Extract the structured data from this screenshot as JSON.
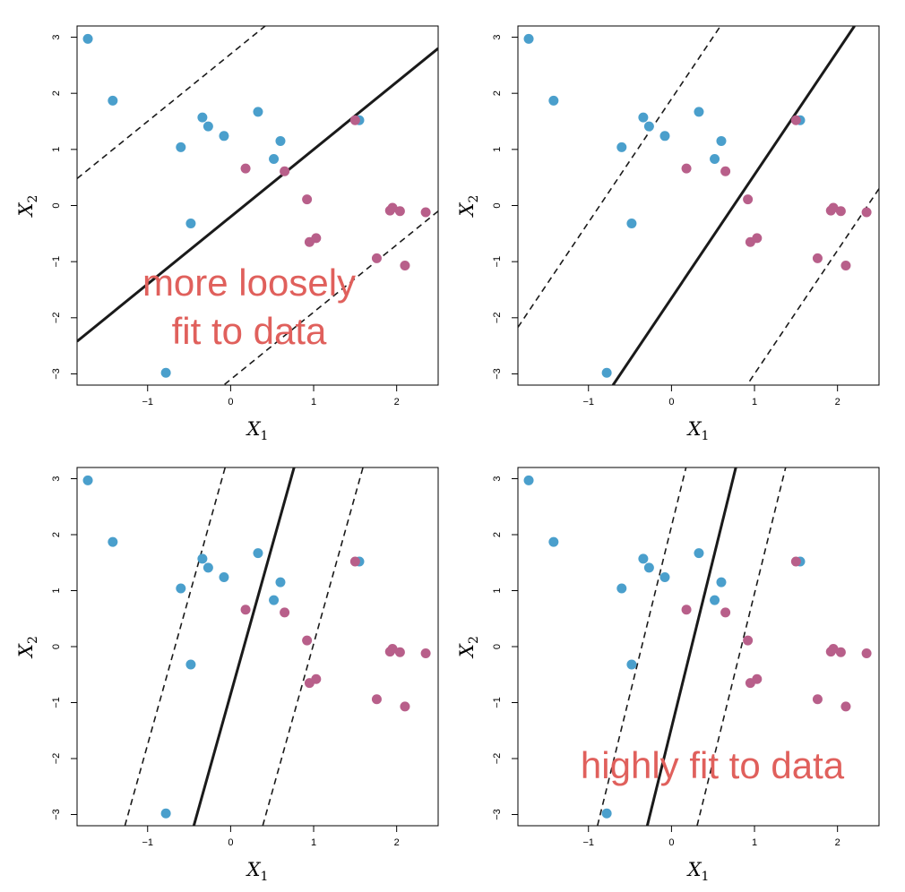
{
  "chart_data": [
    {
      "type": "scatter",
      "xlabel": "X",
      "xlabel_sub": "1",
      "ylabel": "X",
      "ylabel_sub": "2",
      "xlim": [
        -1.85,
        2.5
      ],
      "ylim": [
        -3.2,
        3.2
      ],
      "xticks": [
        -1,
        0,
        1,
        2
      ],
      "yticks": [
        -3,
        -2,
        -1,
        0,
        1,
        2,
        3
      ],
      "annotation": "more loosely\nfit to data",
      "decision_boundary": {
        "slope": 1.2,
        "intercept": -0.2
      },
      "margin_offset": 2.9
    },
    {
      "type": "scatter",
      "xlabel": "X",
      "xlabel_sub": "1",
      "ylabel": "X",
      "ylabel_sub": "2",
      "xlim": [
        -1.85,
        2.5
      ],
      "ylim": [
        -3.2,
        3.2
      ],
      "xticks": [
        -1,
        0,
        1,
        2
      ],
      "yticks": [
        -3,
        -2,
        -1,
        0,
        1,
        2,
        3
      ],
      "annotation": "",
      "decision_boundary": {
        "slope": 2.2,
        "intercept": -1.65
      },
      "margin_offset": 3.55
    },
    {
      "type": "scatter",
      "xlabel": "X",
      "xlabel_sub": "1",
      "ylabel": "X",
      "ylabel_sub": "2",
      "xlim": [
        -1.85,
        2.5
      ],
      "ylim": [
        -3.2,
        3.2
      ],
      "xticks": [
        -1,
        0,
        1,
        2
      ],
      "yticks": [
        -3,
        -2,
        -1,
        0,
        1,
        2,
        3
      ],
      "annotation": "",
      "decision_boundary": {
        "slope": 5.3,
        "intercept": -0.85
      },
      "margin_offset": 4.4
    },
    {
      "type": "scatter",
      "xlabel": "X",
      "xlabel_sub": "1",
      "ylabel": "X",
      "ylabel_sub": "2",
      "xlim": [
        -1.85,
        2.5
      ],
      "ylim": [
        -3.2,
        3.2
      ],
      "xticks": [
        -1,
        0,
        1,
        2
      ],
      "yticks": [
        -3,
        -2,
        -1,
        0,
        1,
        2,
        3
      ],
      "annotation": "highly fit to data",
      "decision_boundary": {
        "slope": 6.0,
        "intercept": -1.45
      },
      "margin_offset": 3.6
    }
  ],
  "points": {
    "blue": [
      [
        -1.72,
        2.97
      ],
      [
        -1.42,
        1.87
      ],
      [
        -0.6,
        1.04
      ],
      [
        -0.34,
        1.57
      ],
      [
        -0.27,
        1.41
      ],
      [
        -0.08,
        1.24
      ],
      [
        0.33,
        1.67
      ],
      [
        0.52,
        0.83
      ],
      [
        0.6,
        1.15
      ],
      [
        1.55,
        1.52
      ],
      [
        -0.48,
        -0.32
      ],
      [
        -0.78,
        -2.98
      ]
    ],
    "pink": [
      [
        1.5,
        1.52
      ],
      [
        0.18,
        0.66
      ],
      [
        0.65,
        0.61
      ],
      [
        0.92,
        0.11
      ],
      [
        0.95,
        -0.65
      ],
      [
        1.03,
        -0.58
      ],
      [
        1.92,
        -0.09
      ],
      [
        1.95,
        -0.04
      ],
      [
        2.04,
        -0.1
      ],
      [
        2.35,
        -0.12
      ],
      [
        1.76,
        -0.94
      ],
      [
        2.1,
        -1.07
      ]
    ]
  },
  "colors": {
    "blue": "#4a9fcc",
    "pink": "#b85f8a",
    "line": "#1a1a1a",
    "annotation": "#e0605c"
  }
}
